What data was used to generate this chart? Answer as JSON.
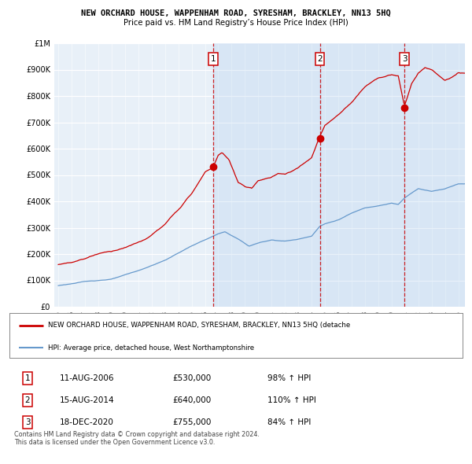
{
  "title": "NEW ORCHARD HOUSE, WAPPENHAM ROAD, SYRESHAM, BRACKLEY, NN13 5HQ",
  "subtitle": "Price paid vs. HM Land Registry’s House Price Index (HPI)",
  "bg_color": "#e8f0f8",
  "sale_year_nums": [
    2006.615,
    2014.615,
    2020.958
  ],
  "sale_prices": [
    530000,
    640000,
    755000
  ],
  "sale_labels": [
    "1",
    "2",
    "3"
  ],
  "legend_line1": "NEW ORCHARD HOUSE, WAPPENHAM ROAD, SYRESHAM, BRACKLEY, NN13 5HQ (detache",
  "legend_line2": "HPI: Average price, detached house, West Northamptonshire",
  "table_data": [
    [
      "1",
      "11-AUG-2006",
      "£530,000",
      "98% ↑ HPI"
    ],
    [
      "2",
      "15-AUG-2014",
      "£640,000",
      "110% ↑ HPI"
    ],
    [
      "3",
      "18-DEC-2020",
      "£755,000",
      "84% ↑ HPI"
    ]
  ],
  "footer": "Contains HM Land Registry data © Crown copyright and database right 2024.\nThis data is licensed under the Open Government Licence v3.0.",
  "ylim": [
    0,
    1000000
  ],
  "yticks": [
    0,
    100000,
    200000,
    300000,
    400000,
    500000,
    600000,
    700000,
    800000,
    900000,
    1000000
  ],
  "ytick_labels": [
    "£0",
    "£100K",
    "£200K",
    "£300K",
    "£400K",
    "£500K",
    "£600K",
    "£700K",
    "£800K",
    "£900K",
    "£1M"
  ],
  "red_color": "#cc0000",
  "blue_color": "#6699cc",
  "highlight_bg": "#dce8f5"
}
